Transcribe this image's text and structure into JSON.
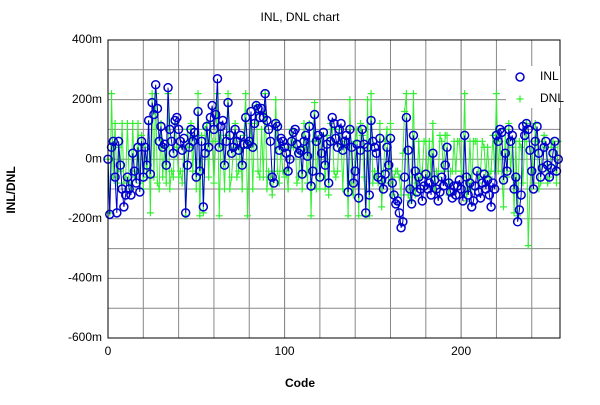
{
  "chart_data": {
    "type": "line",
    "title": "INL, DNL chart",
    "x_label": "Code",
    "y_label": "INL/DNL",
    "xlim": [
      0,
      256
    ],
    "xticks": [
      0,
      100,
      200
    ],
    "xgrid": [
      20,
      40,
      60,
      80,
      100,
      120,
      140,
      160,
      180,
      200,
      220,
      240
    ],
    "ylim": [
      -600,
      400
    ],
    "yticks": [
      {
        "value": -600,
        "label": "-600m"
      },
      {
        "value": -400,
        "label": "-400m"
      },
      {
        "value": -200,
        "label": "-200m"
      },
      {
        "value": 0,
        "label": "0m"
      },
      {
        "value": 200,
        "label": "200m"
      },
      {
        "value": 400,
        "label": "400m"
      }
    ],
    "ygrid": [
      -500,
      -300,
      -100,
      100,
      300
    ],
    "grid": true,
    "legend": "upper right",
    "x": [
      0,
      1,
      2,
      3,
      4,
      5,
      6,
      7,
      8,
      9,
      10,
      11,
      12,
      13,
      14,
      15,
      16,
      17,
      18,
      19,
      20,
      21,
      22,
      23,
      24,
      25,
      26,
      27,
      28,
      29,
      30,
      31,
      32,
      33,
      34,
      35,
      36,
      37,
      38,
      39,
      40,
      41,
      42,
      43,
      44,
      45,
      46,
      47,
      48,
      49,
      50,
      51,
      52,
      53,
      54,
      55,
      56,
      57,
      58,
      59,
      60,
      61,
      62,
      63,
      64,
      65,
      66,
      67,
      68,
      69,
      70,
      71,
      72,
      73,
      74,
      75,
      76,
      77,
      78,
      79,
      80,
      81,
      82,
      83,
      84,
      85,
      86,
      87,
      88,
      89,
      90,
      91,
      92,
      93,
      94,
      95,
      96,
      97,
      98,
      99,
      100,
      101,
      102,
      103,
      104,
      105,
      106,
      107,
      108,
      109,
      110,
      111,
      112,
      113,
      114,
      115,
      116,
      117,
      118,
      119,
      120,
      121,
      122,
      123,
      124,
      125,
      126,
      127,
      128,
      129,
      130,
      131,
      132,
      133,
      134,
      135,
      136,
      137,
      138,
      139,
      140,
      141,
      142,
      143,
      144,
      145,
      146,
      147,
      148,
      149,
      150,
      151,
      152,
      153,
      154,
      155,
      156,
      157,
      158,
      159,
      160,
      161,
      162,
      163,
      164,
      165,
      166,
      167,
      168,
      169,
      170,
      171,
      172,
      173,
      174,
      175,
      176,
      177,
      178,
      179,
      180,
      181,
      182,
      183,
      184,
      185,
      186,
      187,
      188,
      189,
      190,
      191,
      192,
      193,
      194,
      195,
      196,
      197,
      198,
      199,
      200,
      201,
      202,
      203,
      204,
      205,
      206,
      207,
      208,
      209,
      210,
      211,
      212,
      213,
      214,
      215,
      216,
      217,
      218,
      219,
      220,
      221,
      222,
      223,
      224,
      225,
      226,
      227,
      228,
      229,
      230,
      231,
      232,
      233,
      234,
      235,
      236,
      237,
      238,
      239,
      240,
      241,
      242,
      243,
      244,
      245,
      246,
      247,
      248,
      249,
      250,
      251,
      252,
      253,
      254,
      255
    ],
    "series": [
      {
        "name": "INL",
        "color": "#0000cc",
        "marker": "circle",
        "values": [
          0,
          -185,
          40,
          60,
          -60,
          -180,
          60,
          -20,
          -100,
          -160,
          -120,
          -60,
          -100,
          -120,
          20,
          -40,
          -80,
          40,
          -110,
          60,
          -60,
          40,
          -20,
          130,
          -50,
          190,
          150,
          250,
          170,
          60,
          110,
          40,
          50,
          -20,
          240,
          100,
          60,
          20,
          130,
          140,
          100,
          60,
          30,
          70,
          -180,
          -20,
          40,
          100,
          60,
          90,
          -60,
          160,
          -40,
          60,
          -160,
          20,
          110,
          40,
          140,
          180,
          100,
          150,
          270,
          40,
          110,
          130,
          -20,
          60,
          190,
          80,
          20,
          40,
          100,
          60,
          30,
          80,
          -20,
          50,
          140,
          50,
          60,
          160,
          40,
          120,
          180,
          170,
          140,
          170,
          140,
          220,
          130,
          100,
          60,
          -60,
          -80,
          120,
          110,
          30,
          70,
          60,
          40,
          20,
          -40,
          0,
          60,
          90,
          100,
          50,
          20,
          30,
          -50,
          60,
          80,
          10,
          110,
          -90,
          -40,
          150,
          60,
          80,
          -60,
          20,
          90,
          -20,
          50,
          -80,
          60,
          140,
          120,
          70,
          40,
          100,
          120,
          30,
          60,
          80,
          -110,
          100,
          40,
          -80,
          -40,
          50,
          -130,
          30,
          100,
          50,
          -180,
          40,
          -120,
          130,
          60,
          40,
          20,
          -60,
          70,
          -70,
          -100,
          -50,
          40,
          -20,
          70,
          -80,
          -120,
          -150,
          -140,
          -180,
          -230,
          -210,
          -60,
          140,
          30,
          -100,
          -150,
          80,
          -40,
          -110,
          -60,
          -100,
          -140,
          -90,
          -50,
          -100,
          -80,
          -120,
          20,
          -70,
          -100,
          -140,
          -110,
          -60,
          -90,
          -20,
          40,
          -80,
          -110,
          -130,
          -90,
          -120,
          -90,
          -70,
          -100,
          -140,
          80,
          -60,
          -120,
          -80,
          -160,
          -140,
          -90,
          -40,
          -110,
          -130,
          -80,
          -50,
          -100,
          -70,
          -120,
          -160,
          -80,
          -100,
          80,
          60,
          100,
          90,
          -70,
          20,
          -40,
          100,
          60,
          80,
          -100,
          -60,
          -210,
          -170,
          -120,
          110,
          80,
          120,
          100,
          30,
          -40,
          -100,
          60,
          110,
          20,
          -60,
          -30,
          40,
          60,
          -20,
          -60,
          -30,
          20,
          60,
          -40,
          0
        ]
      },
      {
        "name": "DNL",
        "color": "#33ee33",
        "marker": "plus",
        "values": [
          0,
          -180,
          220,
          -60,
          120,
          -80,
          40,
          -40,
          120,
          -80,
          -60,
          120,
          -80,
          -100,
          120,
          -60,
          -40,
          120,
          -80,
          80,
          -100,
          40,
          -60,
          120,
          -180,
          220,
          -60,
          220,
          -80,
          -100,
          120,
          -60,
          40,
          -80,
          220,
          -100,
          -40,
          -60,
          120,
          40,
          -60,
          -40,
          -80,
          40,
          -190,
          100,
          40,
          120,
          -40,
          80,
          -100,
          220,
          -190,
          80,
          -180,
          100,
          120,
          -60,
          120,
          60,
          -80,
          60,
          220,
          -190,
          80,
          40,
          -100,
          80,
          220,
          -100,
          -60,
          40,
          120,
          -60,
          -40,
          60,
          -100,
          80,
          220,
          -190,
          40,
          120,
          -100,
          120,
          180,
          -40,
          -60,
          100,
          -60,
          220,
          -100,
          -40,
          -60,
          -120,
          -40,
          200,
          -40,
          -80,
          40,
          -40,
          -60,
          -40,
          -100,
          40,
          100,
          40,
          60,
          -80,
          -60,
          40,
          -100,
          120,
          40,
          -80,
          120,
          -190,
          60,
          190,
          -100,
          60,
          -100,
          80,
          80,
          -100,
          80,
          -120,
          120,
          100,
          -40,
          -60,
          -40,
          100,
          60,
          -100,
          60,
          40,
          -190,
          200,
          -80,
          -120,
          60,
          100,
          -190,
          120,
          80,
          -60,
          -190,
          200,
          -190,
          220,
          -80,
          -40,
          -60,
          -80,
          120,
          -160,
          -40,
          60,
          100,
          -80,
          120,
          -120,
          -60,
          -40,
          -40,
          -60,
          -120,
          20,
          160,
          220,
          -120,
          -140,
          -60,
          220,
          -120,
          -80,
          60,
          -60,
          -40,
          60,
          60,
          -60,
          60,
          -60,
          120,
          -100,
          -40,
          -60,
          80,
          60,
          -40,
          80,
          80,
          -120,
          -40,
          -40,
          60,
          -40,
          60,
          60,
          -40,
          -60,
          220,
          -140,
          -80,
          60,
          -100,
          60,
          60,
          60,
          -80,
          -40,
          60,
          40,
          -60,
          40,
          -60,
          -40,
          80,
          -40,
          220,
          -40,
          60,
          -40,
          -160,
          100,
          -60,
          120,
          -40,
          40,
          -180,
          60,
          -190,
          60,
          40,
          -80,
          60,
          120,
          -290,
          -100,
          60,
          -80,
          120,
          60,
          -100,
          -80,
          60,
          80,
          40,
          -80,
          -60,
          40,
          60,
          40,
          -80,
          60
        ]
      }
    ]
  }
}
